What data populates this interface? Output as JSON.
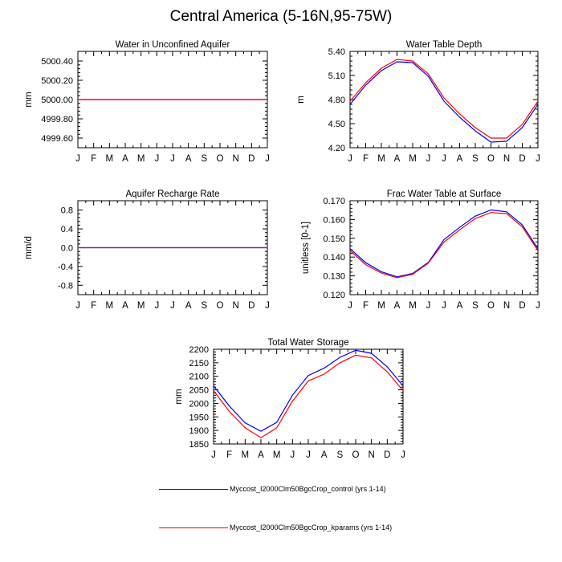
{
  "title": "Central America (5-16N,95-75W)",
  "colors": {
    "control": "#0000ff",
    "kparams": "#ff0000"
  },
  "legend": [
    {
      "label": "Myccost_I2000Clm50BgcCrop_control (yrs 1-14)",
      "color": "#0000ff"
    },
    {
      "label": "Myccost_I2000Clm50BgcCrop_kparams (yrs 1-14)",
      "color": "#ff0000"
    }
  ],
  "chart_data": [
    {
      "type": "line",
      "title": "Water in Unconfined Aquifer",
      "xlabel": "",
      "ylabel": "mm",
      "categories": [
        "J",
        "F",
        "M",
        "A",
        "M",
        "J",
        "J",
        "A",
        "S",
        "O",
        "N",
        "D",
        "J"
      ],
      "ylim": [
        4999.5,
        5000.5
      ],
      "yticks": [
        4999.6,
        4999.8,
        5000.0,
        5000.2,
        5000.4
      ],
      "yticklabels": [
        "4999.60",
        "4999.80",
        "5000.00",
        "5000.20",
        "5000.40"
      ],
      "grid": false,
      "series": [
        {
          "name": "Myccost_I2000Clm50BgcCrop_control (yrs 1-14)",
          "color": "#0000ff",
          "values": [
            5000,
            5000,
            5000,
            5000,
            5000,
            5000,
            5000,
            5000,
            5000,
            5000,
            5000,
            5000,
            5000
          ]
        },
        {
          "name": "Myccost_I2000Clm50BgcCrop_kparams (yrs 1-14)",
          "color": "#ff0000",
          "values": [
            5000,
            5000,
            5000,
            5000,
            5000,
            5000,
            5000,
            5000,
            5000,
            5000,
            5000,
            5000,
            5000
          ]
        }
      ]
    },
    {
      "type": "line",
      "title": "Water Table Depth",
      "xlabel": "",
      "ylabel": "m",
      "categories": [
        "J",
        "F",
        "M",
        "A",
        "M",
        "J",
        "J",
        "A",
        "S",
        "O",
        "N",
        "D",
        "J"
      ],
      "ylim": [
        4.2,
        5.4
      ],
      "yticks": [
        4.2,
        4.5,
        4.8,
        5.1,
        5.4
      ],
      "yticklabels": [
        "4.20",
        "4.50",
        "4.80",
        "5.10",
        "5.40"
      ],
      "grid": false,
      "series": [
        {
          "name": "Myccost_I2000Clm50BgcCrop_control (yrs 1-14)",
          "color": "#0000ff",
          "values": [
            4.74,
            4.98,
            5.16,
            5.27,
            5.26,
            5.09,
            4.78,
            4.58,
            4.41,
            4.27,
            4.28,
            4.45,
            4.74
          ]
        },
        {
          "name": "Myccost_I2000Clm50BgcCrop_kparams (yrs 1-14)",
          "color": "#ff0000",
          "values": [
            4.78,
            5.01,
            5.19,
            5.3,
            5.28,
            5.12,
            4.82,
            4.62,
            4.45,
            4.32,
            4.32,
            4.49,
            4.78
          ]
        }
      ]
    },
    {
      "type": "line",
      "title": "Aquifer Recharge Rate",
      "xlabel": "",
      "ylabel": "mm/d",
      "categories": [
        "J",
        "F",
        "M",
        "A",
        "M",
        "J",
        "J",
        "A",
        "S",
        "O",
        "N",
        "D",
        "J"
      ],
      "ylim": [
        -1.0,
        1.0
      ],
      "yticks": [
        -0.8,
        -0.4,
        0.0,
        0.4,
        0.8
      ],
      "yticklabels": [
        "-0.8",
        "-0.4",
        "0.0",
        "0.4",
        "0.8"
      ],
      "grid": false,
      "series": [
        {
          "name": "Myccost_I2000Clm50BgcCrop_control (yrs 1-14)",
          "color": "#0000ff",
          "values": [
            0,
            0,
            0,
            0,
            0,
            0,
            0,
            0,
            0,
            0,
            0,
            0,
            0
          ]
        },
        {
          "name": "Myccost_I2000Clm50BgcCrop_kparams (yrs 1-14)",
          "color": "#ff0000",
          "values": [
            0,
            0,
            0,
            0,
            0,
            0,
            0,
            0,
            0,
            0,
            0,
            0,
            0
          ]
        }
      ]
    },
    {
      "type": "line",
      "title": "Frac Water Table at Surface",
      "xlabel": "",
      "ylabel": "unitless [0-1]",
      "categories": [
        "J",
        "F",
        "M",
        "A",
        "M",
        "J",
        "J",
        "A",
        "S",
        "O",
        "N",
        "D",
        "J"
      ],
      "ylim": [
        0.12,
        0.17
      ],
      "yticks": [
        0.12,
        0.13,
        0.14,
        0.15,
        0.16,
        0.17
      ],
      "yticklabels": [
        "0.120",
        "0.130",
        "0.140",
        "0.150",
        "0.160",
        "0.170"
      ],
      "grid": false,
      "series": [
        {
          "name": "Myccost_I2000Clm50BgcCrop_control (yrs 1-14)",
          "color": "#0000ff",
          "values": [
            0.1445,
            0.137,
            0.1322,
            0.1295,
            0.1313,
            0.1372,
            0.1493,
            0.1558,
            0.1618,
            0.1651,
            0.1641,
            0.1572,
            0.1445
          ]
        },
        {
          "name": "Myccost_I2000Clm50BgcCrop_kparams (yrs 1-14)",
          "color": "#ff0000",
          "values": [
            0.1435,
            0.136,
            0.1315,
            0.129,
            0.1308,
            0.1368,
            0.148,
            0.1545,
            0.1605,
            0.1637,
            0.1631,
            0.1561,
            0.1435
          ]
        }
      ]
    },
    {
      "type": "line",
      "title": "Total Water Storage",
      "xlabel": "",
      "ylabel": "mm",
      "categories": [
        "J",
        "F",
        "M",
        "A",
        "M",
        "J",
        "J",
        "A",
        "S",
        "O",
        "N",
        "D",
        "J"
      ],
      "ylim": [
        1850,
        2200
      ],
      "yticks": [
        1850,
        1900,
        1950,
        2000,
        2050,
        2100,
        2150,
        2200
      ],
      "yticklabels": [
        "1850",
        "1900",
        "1950",
        "2000",
        "2050",
        "2100",
        "2150",
        "2200"
      ],
      "grid": false,
      "series": [
        {
          "name": "Myccost_I2000Clm50BgcCrop_control (yrs 1-14)",
          "color": "#0000ff",
          "values": [
            2065,
            1990,
            1928,
            1897,
            1930,
            2030,
            2103,
            2130,
            2170,
            2196,
            2185,
            2135,
            2065
          ]
        },
        {
          "name": "Myccost_I2000Clm50BgcCrop_kparams (yrs 1-14)",
          "color": "#ff0000",
          "values": [
            2047,
            1970,
            1910,
            1873,
            1910,
            2008,
            2083,
            2108,
            2150,
            2178,
            2168,
            2117,
            2047
          ]
        }
      ]
    }
  ]
}
